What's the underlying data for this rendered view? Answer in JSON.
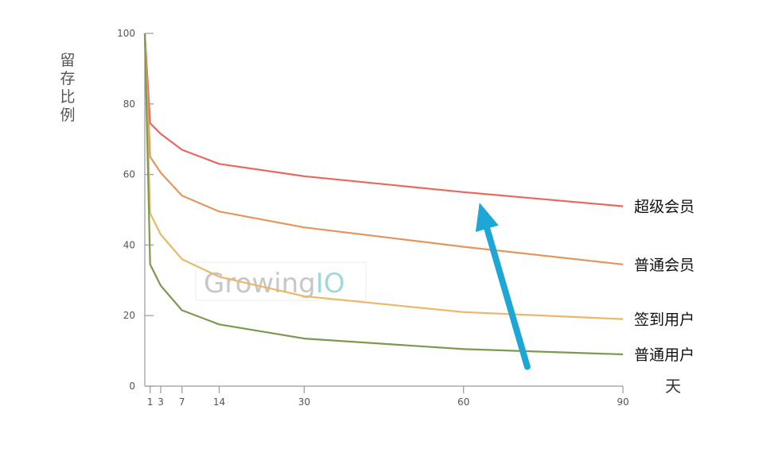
{
  "chart_data": {
    "type": "line",
    "x": [
      1,
      3,
      7,
      14,
      30,
      60,
      90
    ],
    "xlim": [
      0,
      90
    ],
    "ylim": [
      0,
      100
    ],
    "xticks": [
      "1",
      "3",
      "7",
      "14",
      "30",
      "60",
      "90"
    ],
    "yticks": [
      "0",
      "20",
      "40",
      "60",
      "80",
      "100"
    ],
    "title": "",
    "ylabel": "留存比例",
    "xlabel": "天",
    "grid": false,
    "legend": "inline-right",
    "series": [
      {
        "name": "超级会员",
        "color": "#e8685e",
        "values": [
          74.5,
          71.5,
          67,
          63,
          59.5,
          55,
          51
        ]
      },
      {
        "name": "普通会员",
        "color": "#e39760",
        "values": [
          65,
          60.5,
          54,
          49.5,
          45,
          39.5,
          34.5
        ]
      },
      {
        "name": "签到用户",
        "color": "#e9b86a",
        "values": [
          49,
          43,
          36,
          31,
          25.5,
          21,
          19
        ]
      },
      {
        "name": "普通用户",
        "color": "#7c9a4f",
        "values": [
          34.5,
          28.5,
          21.5,
          17.5,
          13.5,
          10.5,
          9
        ]
      }
    ],
    "annotation": {
      "type": "arrow",
      "color": "#1ea6d6",
      "from": [
        72,
        5.5
      ],
      "to": [
        63,
        52
      ]
    }
  },
  "watermark": {
    "prefix": "Growing",
    "suffix": "IO"
  }
}
